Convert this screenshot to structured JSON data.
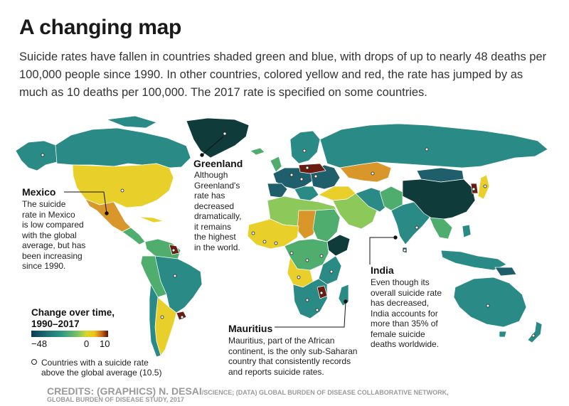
{
  "title": "A changing map",
  "subtitle": "Suicide rates have fallen in countries shaded green and blue, with drops of up to nearly 48 deaths per 100,000 people since 1990. In other countries, colored yellow and red, the rate has jumped by as much as 10 deaths per 100,000. The 2017 rate is specified on some countries.",
  "annotations": {
    "greenland": {
      "title": "Greenland",
      "lines": [
        "Although",
        "Greenland's",
        "rate has",
        "decreased",
        "dramatically,",
        "it remains",
        "the highest",
        "in the world."
      ]
    },
    "mexico": {
      "title": "Mexico",
      "lines": [
        "The suicide",
        "rate in Mexico",
        "is low compared",
        "with the global",
        "average, but has",
        "been increasing",
        "since 1990."
      ]
    },
    "india": {
      "title": "India",
      "lines": [
        "Even though its",
        "overall suicide rate",
        "has decreased,",
        "India accounts for",
        "more than 35% of",
        "female suicide",
        "deaths worldwide."
      ]
    },
    "mauritius": {
      "title": "Mauritius",
      "lines": [
        "Mauritius, part of the African",
        "continent, is the only sub-Saharan",
        "country that consistently records",
        "and reports suicide rates."
      ]
    }
  },
  "legend": {
    "title_line1": "Change over time,",
    "title_line2": "1990–2017",
    "tick_min": "−48",
    "tick_zero": "0",
    "tick_max": "10",
    "scale_min": -48,
    "scale_max": 10,
    "dot_line1": "Countries with a suicide rate",
    "dot_line2": "above the global average (10.5)"
  },
  "credits": {
    "main": "CREDITS: (GRAPHICS) N. DESAI",
    "small": "/SCIENCE; (DATA) GLOBAL BURDEN OF DISEASE COLLABORATIVE NETWORK,",
    "line2": "GLOBAL BURDEN OF DISEASE STUDY, 2017"
  },
  "colors": {
    "dark_teal": "#1f5f6b",
    "teal": "#2a8a86",
    "green": "#4fae6e",
    "light_green": "#8cc85a",
    "yellow": "#e8cf2a",
    "orange": "#d9962a",
    "dark_red": "#6b1c10",
    "ocean": "#ffffff"
  }
}
